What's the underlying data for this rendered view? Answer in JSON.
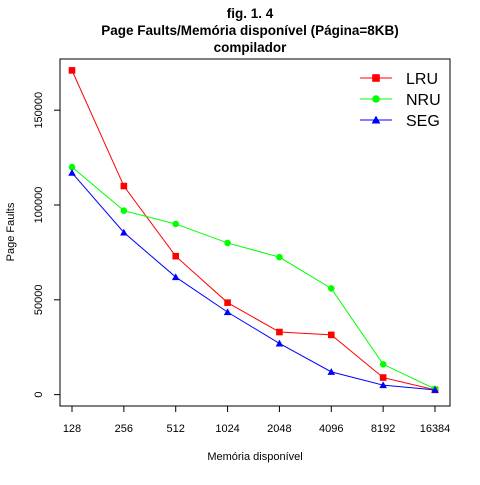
{
  "chart_data": {
    "type": "line",
    "title_lines": [
      "fig. 1. 4",
      "Page Faults/Memória disponível (Página=8KB)",
      "compilador"
    ],
    "xlabel": "Memória disponível",
    "ylabel": "Page Faults",
    "categories": [
      "128",
      "256",
      "512",
      "1024",
      "2048",
      "4096",
      "8192",
      "16384"
    ],
    "ylim": [
      -6000,
      177000
    ],
    "yticks": [
      0,
      50000,
      100000,
      150000
    ],
    "ytick_labels": [
      "0",
      "50000",
      "100000",
      "150000"
    ],
    "grid": false,
    "legend_position": "top-right",
    "series": [
      {
        "name": "LRU",
        "color": "#ff0000",
        "marker": "square",
        "values": [
          171000,
          110000,
          73000,
          48500,
          33000,
          31500,
          9000,
          2500
        ]
      },
      {
        "name": "NRU",
        "color": "#00ff00",
        "marker": "circle",
        "values": [
          120000,
          97000,
          90000,
          80000,
          72500,
          56000,
          16000,
          3000
        ]
      },
      {
        "name": "SEG",
        "color": "#0000ff",
        "marker": "triangle",
        "values": [
          117000,
          85500,
          62000,
          43500,
          27000,
          12000,
          5000,
          2500
        ]
      }
    ]
  }
}
